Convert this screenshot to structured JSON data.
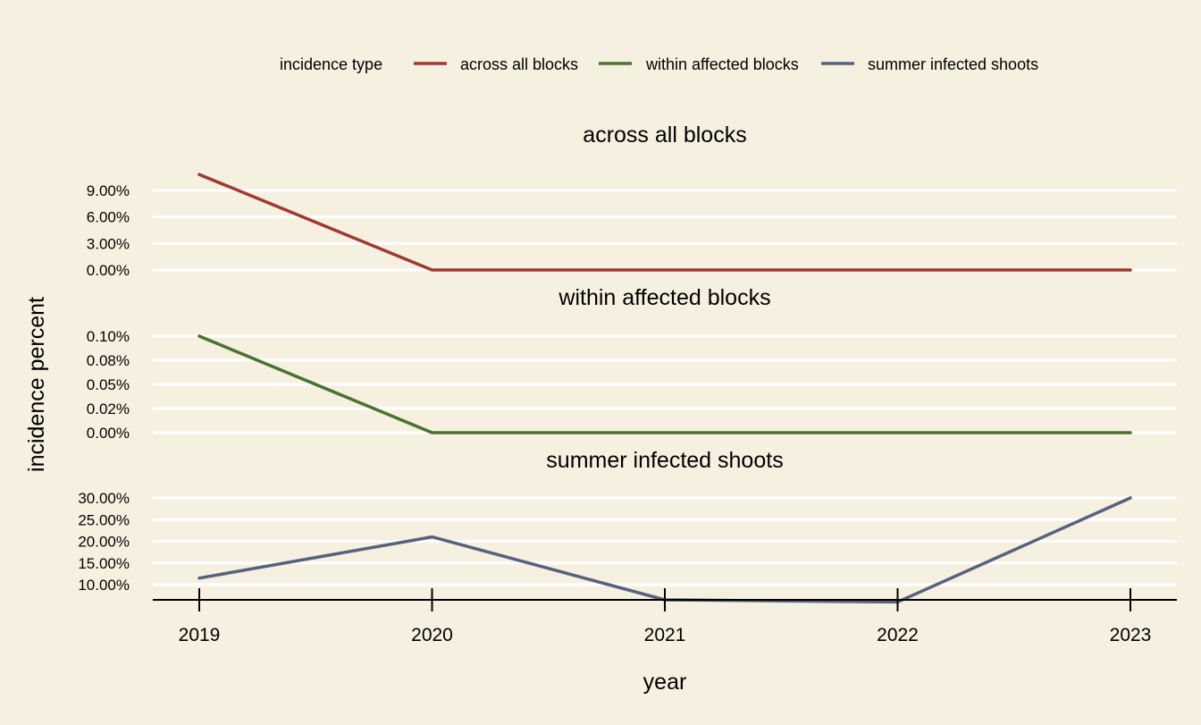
{
  "legend": {
    "title": "incidence type",
    "items": [
      {
        "label": "across all blocks",
        "color": "#9e3a33"
      },
      {
        "label": "within affected blocks",
        "color": "#4b7231"
      },
      {
        "label": "summer infected shoots",
        "color": "#56627e"
      }
    ]
  },
  "chart_data": {
    "type": "line",
    "xlabel": "year",
    "ylabel": "incidence percent",
    "x": [
      "2019",
      "2020",
      "2021",
      "2022",
      "2023"
    ],
    "grid": true,
    "legend_position": "top",
    "background_color": "#f6f0e0",
    "panels": [
      {
        "title": "across all blocks",
        "series_name": "across all blocks",
        "color": "#9e3a33",
        "values": [
          10.8,
          0.0,
          0.0,
          0.0,
          0.0
        ],
        "yticks": [
          0,
          3,
          6,
          9
        ],
        "ytick_labels": [
          "0.00%",
          "3.00%",
          "6.00%",
          "9.00%"
        ]
      },
      {
        "title": "within affected blocks",
        "series_name": "within affected blocks",
        "color": "#4b7231",
        "values": [
          0.1,
          0.0,
          0.0,
          0.0,
          0.0
        ],
        "yticks": [
          0,
          0.025,
          0.05,
          0.075,
          0.1
        ],
        "ytick_labels": [
          "0.00%",
          "0.02%",
          "0.05%",
          "0.08%",
          "0.10%"
        ]
      },
      {
        "title": "summer infected shoots",
        "series_name": "summer infected shoots",
        "color": "#56627e",
        "values": [
          11.5,
          21.0,
          6.5,
          6.0,
          30.0
        ],
        "yticks": [
          10,
          15,
          20,
          25,
          30
        ],
        "ytick_labels": [
          "10.00%",
          "15.00%",
          "20.00%",
          "25.00%",
          "30.00%"
        ]
      }
    ]
  }
}
